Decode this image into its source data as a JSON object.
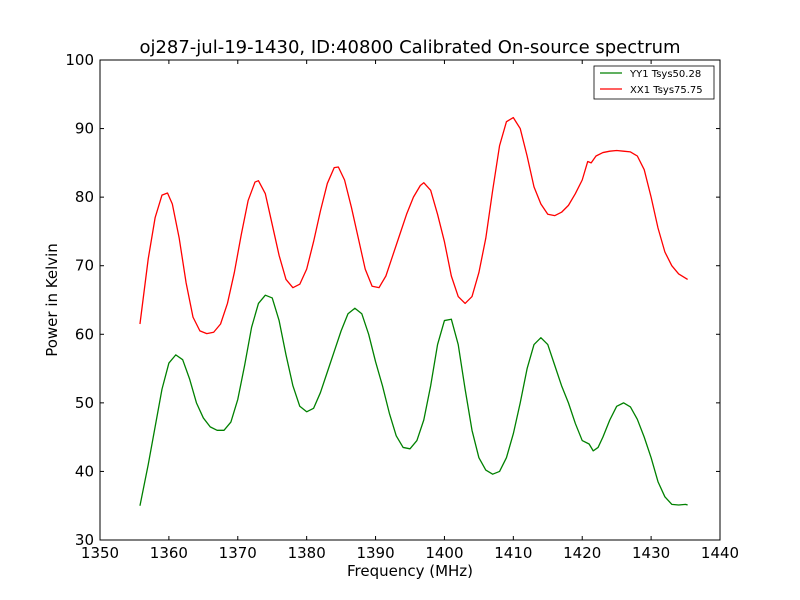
{
  "chart_data": {
    "type": "line",
    "title": "oj287-jul-19-1430, ID:40800 Calibrated On-source spectrum",
    "xlabel": "Frequency (MHz)",
    "ylabel": "Power in Kelvin",
    "xlim": [
      1350,
      1440
    ],
    "ylim": [
      30,
      100
    ],
    "xticks": [
      1350,
      1360,
      1370,
      1380,
      1390,
      1400,
      1410,
      1420,
      1430,
      1440
    ],
    "yticks": [
      30,
      40,
      50,
      60,
      70,
      80,
      90,
      100
    ],
    "xtick_labels": [
      "1350",
      "1360",
      "1370",
      "1380",
      "1390",
      "1400",
      "1410",
      "1420",
      "1430",
      "1440"
    ],
    "ytick_labels": [
      "30",
      "40",
      "50",
      "60",
      "70",
      "80",
      "90",
      "100"
    ],
    "grid": false,
    "legend_position": "top-right",
    "series": [
      {
        "name": "YY1 Tsys50.28",
        "color": "#008000",
        "points": [
          [
            1355.8,
            35.0
          ],
          [
            1357,
            41
          ],
          [
            1358,
            46.5
          ],
          [
            1359,
            52
          ],
          [
            1360,
            55.8
          ],
          [
            1361,
            57.0
          ],
          [
            1362,
            56.3
          ],
          [
            1363,
            53.5
          ],
          [
            1364,
            50
          ],
          [
            1365,
            47.8
          ],
          [
            1366,
            46.5
          ],
          [
            1367,
            46.0
          ],
          [
            1368,
            46.0
          ],
          [
            1369,
            47.2
          ],
          [
            1370,
            50.5
          ],
          [
            1371,
            55.5
          ],
          [
            1372,
            61
          ],
          [
            1373,
            64.5
          ],
          [
            1374,
            65.7
          ],
          [
            1375,
            65.3
          ],
          [
            1376,
            62
          ],
          [
            1377,
            57
          ],
          [
            1378,
            52.5
          ],
          [
            1379,
            49.5
          ],
          [
            1380,
            48.7
          ],
          [
            1381,
            49.2
          ],
          [
            1382,
            51.5
          ],
          [
            1383,
            54.5
          ],
          [
            1384,
            57.5
          ],
          [
            1385,
            60.5
          ],
          [
            1386,
            63.0
          ],
          [
            1387,
            63.8
          ],
          [
            1388,
            63
          ],
          [
            1389,
            60
          ],
          [
            1390,
            56
          ],
          [
            1391,
            52.5
          ],
          [
            1392,
            48.5
          ],
          [
            1393,
            45.2
          ],
          [
            1394,
            43.5
          ],
          [
            1395,
            43.3
          ],
          [
            1396,
            44.5
          ],
          [
            1397,
            47.5
          ],
          [
            1398,
            52.5
          ],
          [
            1399,
            58.5
          ],
          [
            1400,
            62
          ],
          [
            1401,
            62.2
          ],
          [
            1402,
            58.5
          ],
          [
            1403,
            52
          ],
          [
            1404,
            46
          ],
          [
            1405,
            42
          ],
          [
            1406,
            40.2
          ],
          [
            1407,
            39.6
          ],
          [
            1408,
            40
          ],
          [
            1409,
            42
          ],
          [
            1410,
            45.5
          ],
          [
            1411,
            50
          ],
          [
            1412,
            55
          ],
          [
            1413,
            58.5
          ],
          [
            1414,
            59.5
          ],
          [
            1415,
            58.5
          ],
          [
            1416,
            55.5
          ],
          [
            1417,
            52.5
          ],
          [
            1418,
            50
          ],
          [
            1419,
            47
          ],
          [
            1420,
            44.5
          ],
          [
            1421,
            44
          ],
          [
            1421.6,
            43
          ],
          [
            1422.3,
            43.5
          ],
          [
            1423,
            45
          ],
          [
            1424,
            47.5
          ],
          [
            1425,
            49.5
          ],
          [
            1426,
            50
          ],
          [
            1427,
            49.4
          ],
          [
            1428,
            47.6
          ],
          [
            1429,
            45
          ],
          [
            1430,
            42
          ],
          [
            1431,
            38.5
          ],
          [
            1432,
            36.3
          ],
          [
            1433,
            35.2
          ],
          [
            1434,
            35.1
          ],
          [
            1435,
            35.2
          ],
          [
            1435.3,
            35.1
          ]
        ]
      },
      {
        "name": "XX1 Tsys75.75",
        "color": "#ff0000",
        "points": [
          [
            1355.8,
            61.5
          ],
          [
            1357,
            71
          ],
          [
            1358,
            77
          ],
          [
            1359,
            80.3
          ],
          [
            1359.8,
            80.6
          ],
          [
            1360.5,
            79
          ],
          [
            1361.5,
            74
          ],
          [
            1362.5,
            67.5
          ],
          [
            1363.5,
            62.5
          ],
          [
            1364.5,
            60.5
          ],
          [
            1365.5,
            60.1
          ],
          [
            1366.5,
            60.3
          ],
          [
            1367.5,
            61.5
          ],
          [
            1368.5,
            64.5
          ],
          [
            1369.5,
            69
          ],
          [
            1370.5,
            74.5
          ],
          [
            1371.5,
            79.5
          ],
          [
            1372.5,
            82.2
          ],
          [
            1373,
            82.4
          ],
          [
            1374,
            80.5
          ],
          [
            1375,
            76
          ],
          [
            1376,
            71.5
          ],
          [
            1377,
            68
          ],
          [
            1378,
            66.8
          ],
          [
            1379,
            67.3
          ],
          [
            1380,
            69.5
          ],
          [
            1381,
            73.5
          ],
          [
            1382,
            78
          ],
          [
            1383,
            82
          ],
          [
            1384,
            84.3
          ],
          [
            1384.6,
            84.4
          ],
          [
            1385.5,
            82.5
          ],
          [
            1386.5,
            78.5
          ],
          [
            1387.5,
            74
          ],
          [
            1388.5,
            69.5
          ],
          [
            1389.5,
            67
          ],
          [
            1390.5,
            66.8
          ],
          [
            1391.5,
            68.5
          ],
          [
            1392.5,
            71.5
          ],
          [
            1393.5,
            74.5
          ],
          [
            1394.5,
            77.5
          ],
          [
            1395.5,
            80
          ],
          [
            1396.5,
            81.7
          ],
          [
            1397,
            82.1
          ],
          [
            1398,
            81
          ],
          [
            1399,
            77.5
          ],
          [
            1400,
            73.5
          ],
          [
            1401,
            68.5
          ],
          [
            1402,
            65.5
          ],
          [
            1403,
            64.5
          ],
          [
            1404,
            65.5
          ],
          [
            1405,
            69
          ],
          [
            1406,
            74
          ],
          [
            1407,
            81
          ],
          [
            1408,
            87.5
          ],
          [
            1409,
            91
          ],
          [
            1410,
            91.6
          ],
          [
            1411,
            90
          ],
          [
            1412,
            86
          ],
          [
            1413,
            81.5
          ],
          [
            1414,
            79
          ],
          [
            1415,
            77.5
          ],
          [
            1416,
            77.3
          ],
          [
            1417,
            77.8
          ],
          [
            1418,
            78.8
          ],
          [
            1419,
            80.5
          ],
          [
            1420,
            82.5
          ],
          [
            1420.8,
            85.2
          ],
          [
            1421.3,
            85
          ],
          [
            1422,
            86
          ],
          [
            1423,
            86.5
          ],
          [
            1424,
            86.7
          ],
          [
            1425,
            86.8
          ],
          [
            1426,
            86.7
          ],
          [
            1427,
            86.6
          ],
          [
            1428,
            86
          ],
          [
            1429,
            84
          ],
          [
            1430,
            80
          ],
          [
            1431,
            75.5
          ],
          [
            1432,
            72
          ],
          [
            1433,
            70
          ],
          [
            1434,
            68.8
          ],
          [
            1435.3,
            68
          ]
        ]
      }
    ]
  }
}
